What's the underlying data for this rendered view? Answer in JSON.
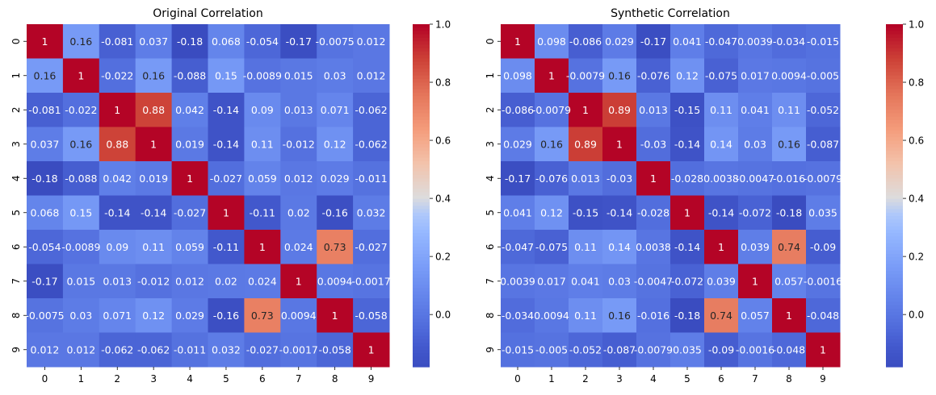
{
  "chart_data": [
    {
      "type": "heatmap",
      "title": "Original Correlation",
      "x_labels": [
        "0",
        "1",
        "2",
        "3",
        "4",
        "5",
        "6",
        "7",
        "8",
        "9"
      ],
      "y_labels": [
        "0",
        "1",
        "2",
        "3",
        "4",
        "5",
        "6",
        "7",
        "8",
        "9"
      ],
      "colormap": "coolwarm",
      "vmin": -0.18,
      "vmax": 1.0,
      "colorbar_ticks": [
        "1.0",
        "0.8",
        "0.6",
        "0.4",
        "0.2",
        "0.0"
      ],
      "colorbar_tick_values": [
        1.0,
        0.8,
        0.6,
        0.4,
        0.2,
        0.0
      ],
      "values": [
        [
          1,
          0.16,
          -0.081,
          0.037,
          -0.18,
          0.068,
          -0.054,
          -0.17,
          -0.0075,
          0.012
        ],
        [
          0.16,
          1,
          -0.022,
          0.16,
          -0.088,
          0.15,
          -0.0089,
          0.015,
          0.03,
          0.012
        ],
        [
          -0.081,
          -0.022,
          1,
          0.88,
          0.042,
          -0.14,
          0.09,
          0.013,
          0.071,
          -0.062
        ],
        [
          0.037,
          0.16,
          0.88,
          1,
          0.019,
          -0.14,
          0.11,
          -0.012,
          0.12,
          -0.062
        ],
        [
          -0.18,
          -0.088,
          0.042,
          0.019,
          1,
          -0.027,
          0.059,
          0.012,
          0.029,
          -0.011
        ],
        [
          0.068,
          0.15,
          -0.14,
          -0.14,
          -0.027,
          1,
          -0.11,
          0.02,
          -0.16,
          0.032
        ],
        [
          -0.054,
          -0.0089,
          0.09,
          0.11,
          0.059,
          -0.11,
          1,
          0.024,
          0.73,
          -0.027
        ],
        [
          -0.17,
          0.015,
          0.013,
          -0.012,
          0.012,
          0.02,
          0.024,
          1,
          0.0094,
          -0.0017
        ],
        [
          -0.0075,
          0.03,
          0.071,
          0.12,
          0.029,
          -0.16,
          0.73,
          0.0094,
          1,
          -0.058
        ],
        [
          0.012,
          0.012,
          -0.062,
          -0.062,
          -0.011,
          0.032,
          -0.027,
          -0.0017,
          -0.058,
          1
        ]
      ],
      "labels": [
        [
          "1",
          "0.16",
          "-0.081",
          "0.037",
          "-0.18",
          "0.068",
          "-0.054",
          "-0.17",
          "-0.0075",
          "0.012"
        ],
        [
          "0.16",
          "1",
          "-0.022",
          "0.16",
          "-0.088",
          "0.15",
          "-0.0089",
          "0.015",
          "0.03",
          "0.012"
        ],
        [
          "-0.081",
          "-0.022",
          "1",
          "0.88",
          "0.042",
          "-0.14",
          "0.09",
          "0.013",
          "0.071",
          "-0.062"
        ],
        [
          "0.037",
          "0.16",
          "0.88",
          "1",
          "0.019",
          "-0.14",
          "0.11",
          "-0.012",
          "0.12",
          "-0.062"
        ],
        [
          "-0.18",
          "-0.088",
          "0.042",
          "0.019",
          "1",
          "-0.027",
          "0.059",
          "0.012",
          "0.029",
          "-0.011"
        ],
        [
          "0.068",
          "0.15",
          "-0.14",
          "-0.14",
          "-0.027",
          "1",
          "-0.11",
          "0.02",
          "-0.16",
          "0.032"
        ],
        [
          "-0.054",
          "-0.0089",
          "0.09",
          "0.11",
          "0.059",
          "-0.11",
          "1",
          "0.024",
          "0.73",
          "-0.027"
        ],
        [
          "-0.17",
          "0.015",
          "0.013",
          "-0.012",
          "0.012",
          "0.02",
          "0.024",
          "1",
          "0.0094",
          "-0.0017"
        ],
        [
          "-0.0075",
          "0.03",
          "0.071",
          "0.12",
          "0.029",
          "-0.16",
          "0.73",
          "0.0094",
          "1",
          "-0.058"
        ],
        [
          "0.012",
          "0.012",
          "-0.062",
          "-0.062",
          "-0.011",
          "0.032",
          "-0.027",
          "-0.0017",
          "-0.058",
          "1"
        ]
      ]
    },
    {
      "type": "heatmap",
      "title": "Synthetic Correlation",
      "x_labels": [
        "0",
        "1",
        "2",
        "3",
        "4",
        "5",
        "6",
        "7",
        "8",
        "9"
      ],
      "y_labels": [
        "0",
        "1",
        "2",
        "3",
        "4",
        "5",
        "6",
        "7",
        "8",
        "9"
      ],
      "colormap": "coolwarm",
      "vmin": -0.18,
      "vmax": 1.0,
      "colorbar_ticks": [
        "1.0",
        "0.8",
        "0.6",
        "0.4",
        "0.2",
        "0.0"
      ],
      "colorbar_tick_values": [
        1.0,
        0.8,
        0.6,
        0.4,
        0.2,
        0.0
      ],
      "values": [
        [
          1,
          0.098,
          -0.086,
          0.029,
          -0.17,
          0.041,
          -0.047,
          0.0039,
          -0.034,
          -0.015
        ],
        [
          0.098,
          1,
          -0.0079,
          0.16,
          -0.076,
          0.12,
          -0.075,
          0.017,
          0.0094,
          -0.005
        ],
        [
          -0.086,
          -0.0079,
          1,
          0.89,
          0.013,
          -0.15,
          0.11,
          0.041,
          0.11,
          -0.052
        ],
        [
          0.029,
          0.16,
          0.89,
          1,
          -0.03,
          -0.14,
          0.14,
          0.03,
          0.16,
          -0.087
        ],
        [
          -0.17,
          -0.076,
          0.013,
          -0.03,
          1,
          -0.028,
          0.0038,
          -0.0047,
          -0.016,
          -0.0079
        ],
        [
          0.041,
          0.12,
          -0.15,
          -0.14,
          -0.028,
          1,
          -0.14,
          -0.072,
          -0.18,
          0.035
        ],
        [
          -0.047,
          -0.075,
          0.11,
          0.14,
          0.0038,
          -0.14,
          1,
          0.039,
          0.74,
          -0.09
        ],
        [
          0.0039,
          0.017,
          0.041,
          0.03,
          -0.0047,
          -0.072,
          0.039,
          1,
          0.057,
          -0.0016
        ],
        [
          -0.034,
          0.0094,
          0.11,
          0.16,
          -0.016,
          -0.18,
          0.74,
          0.057,
          1,
          -0.048
        ],
        [
          -0.015,
          -0.005,
          -0.052,
          -0.087,
          -0.0079,
          0.035,
          -0.09,
          -0.0016,
          -0.048,
          1
        ]
      ],
      "labels": [
        [
          "1",
          "0.098",
          "-0.086",
          "0.029",
          "-0.17",
          "0.041",
          "-0.047",
          "0.0039",
          "-0.034",
          "-0.015"
        ],
        [
          "0.098",
          "1",
          "-0.0079",
          "0.16",
          "-0.076",
          "0.12",
          "-0.075",
          "0.017",
          "0.0094",
          "-0.005"
        ],
        [
          "-0.086",
          "-0.0079",
          "1",
          "0.89",
          "0.013",
          "-0.15",
          "0.11",
          "0.041",
          "0.11",
          "-0.052"
        ],
        [
          "0.029",
          "0.16",
          "0.89",
          "1",
          "-0.03",
          "-0.14",
          "0.14",
          "0.03",
          "0.16",
          "-0.087"
        ],
        [
          "-0.17",
          "-0.076",
          "0.013",
          "-0.03",
          "1",
          "-0.028",
          "0.0038",
          "-0.0047",
          "-0.016",
          "-0.0079"
        ],
        [
          "0.041",
          "0.12",
          "-0.15",
          "-0.14",
          "-0.028",
          "1",
          "-0.14",
          "-0.072",
          "-0.18",
          "0.035"
        ],
        [
          "-0.047",
          "-0.075",
          "0.11",
          "0.14",
          "0.0038",
          "-0.14",
          "1",
          "0.039",
          "0.74",
          "-0.09"
        ],
        [
          "0.0039",
          "0.017",
          "0.041",
          "0.03",
          "-0.0047",
          "-0.072",
          "0.039",
          "1",
          "0.057",
          "-0.0016"
        ],
        [
          "-0.034",
          "0.0094",
          "0.11",
          "0.16",
          "-0.016",
          "-0.18",
          "0.74",
          "0.057",
          "1",
          "-0.048"
        ],
        [
          "-0.015",
          "-0.005",
          "-0.052",
          "-0.087",
          "-0.0079",
          "0.035",
          "-0.09",
          "-0.0016",
          "-0.048",
          "1"
        ]
      ]
    }
  ]
}
